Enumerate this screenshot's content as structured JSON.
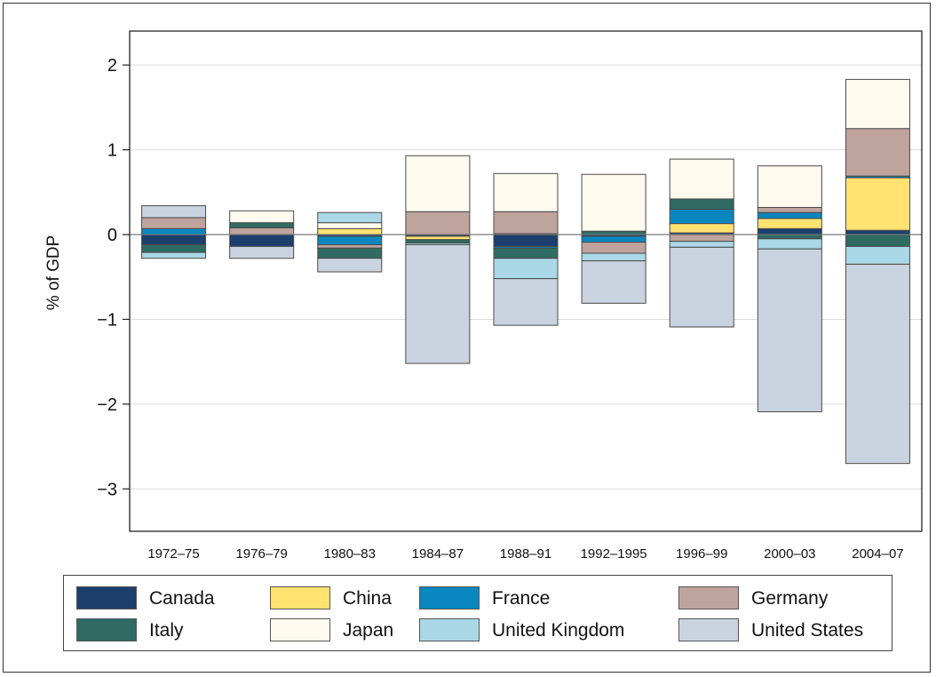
{
  "chart_data": {
    "type": "bar",
    "stacked": true,
    "diverging": true,
    "title": "",
    "xlabel": "",
    "ylabel": "% of GDP",
    "ylim": [
      -3.5,
      2.4
    ],
    "yticks": [
      2,
      1,
      0,
      -1,
      -2,
      -3
    ],
    "ytick_labels": [
      "2",
      "1",
      "0",
      "−1",
      "−2",
      "−3"
    ],
    "grid": true,
    "legend_position": "bottom",
    "categories": [
      "1972–75",
      "1976–79",
      "1980–83",
      "1984–87",
      "1988–91",
      "1992–1995",
      "1996–99",
      "2000–03",
      "2004–07"
    ],
    "series": [
      {
        "name": "Canada",
        "color": "#1c3f6e",
        "values": [
          -0.12,
          -0.14,
          -0.02,
          -0.02,
          -0.14,
          -0.02,
          0.02,
          0.07,
          0.05
        ]
      },
      {
        "name": "China",
        "color": "#ffe270",
        "values": [
          0.0,
          0.0,
          0.07,
          -0.04,
          0.01,
          0.0,
          0.11,
          0.12,
          0.62
        ]
      },
      {
        "name": "France",
        "color": "#0a87bf",
        "values": [
          0.07,
          0.0,
          -0.1,
          0.0,
          -0.02,
          -0.07,
          0.17,
          0.07,
          0.02
        ]
      },
      {
        "name": "Germany",
        "color": "#bea49d",
        "values": [
          0.13,
          0.08,
          -0.04,
          0.27,
          0.26,
          -0.13,
          -0.08,
          0.06,
          0.56
        ]
      },
      {
        "name": "Italy",
        "color": "#2f6b63",
        "values": [
          -0.09,
          0.06,
          -0.12,
          -0.04,
          -0.12,
          0.04,
          0.12,
          -0.05,
          -0.14
        ]
      },
      {
        "name": "Japan",
        "color": "#fffaee",
        "values": [
          0.0,
          0.14,
          0.07,
          0.66,
          0.45,
          0.67,
          0.47,
          0.49,
          0.58
        ]
      },
      {
        "name": "United Kingdom",
        "color": "#aad8e6",
        "values": [
          -0.07,
          0.0,
          0.12,
          -0.02,
          -0.24,
          -0.09,
          -0.07,
          -0.12,
          -0.21
        ]
      },
      {
        "name": "United States",
        "color": "#c9d4e0",
        "values": [
          0.14,
          -0.14,
          -0.16,
          -1.4,
          -0.55,
          -0.5,
          -0.94,
          -1.92,
          -2.35
        ]
      }
    ]
  },
  "legend": {
    "items": [
      {
        "label": "Canada",
        "color": "#1c3f6e"
      },
      {
        "label": "China",
        "color": "#ffe270"
      },
      {
        "label": "France",
        "color": "#0a87bf"
      },
      {
        "label": "Germany",
        "color": "#bea49d"
      },
      {
        "label": "Italy",
        "color": "#2f6b63"
      },
      {
        "label": "Japan",
        "color": "#fffaee"
      },
      {
        "label": "United Kingdom",
        "color": "#aad8e6"
      },
      {
        "label": "United States",
        "color": "#c9d4e0"
      }
    ]
  }
}
